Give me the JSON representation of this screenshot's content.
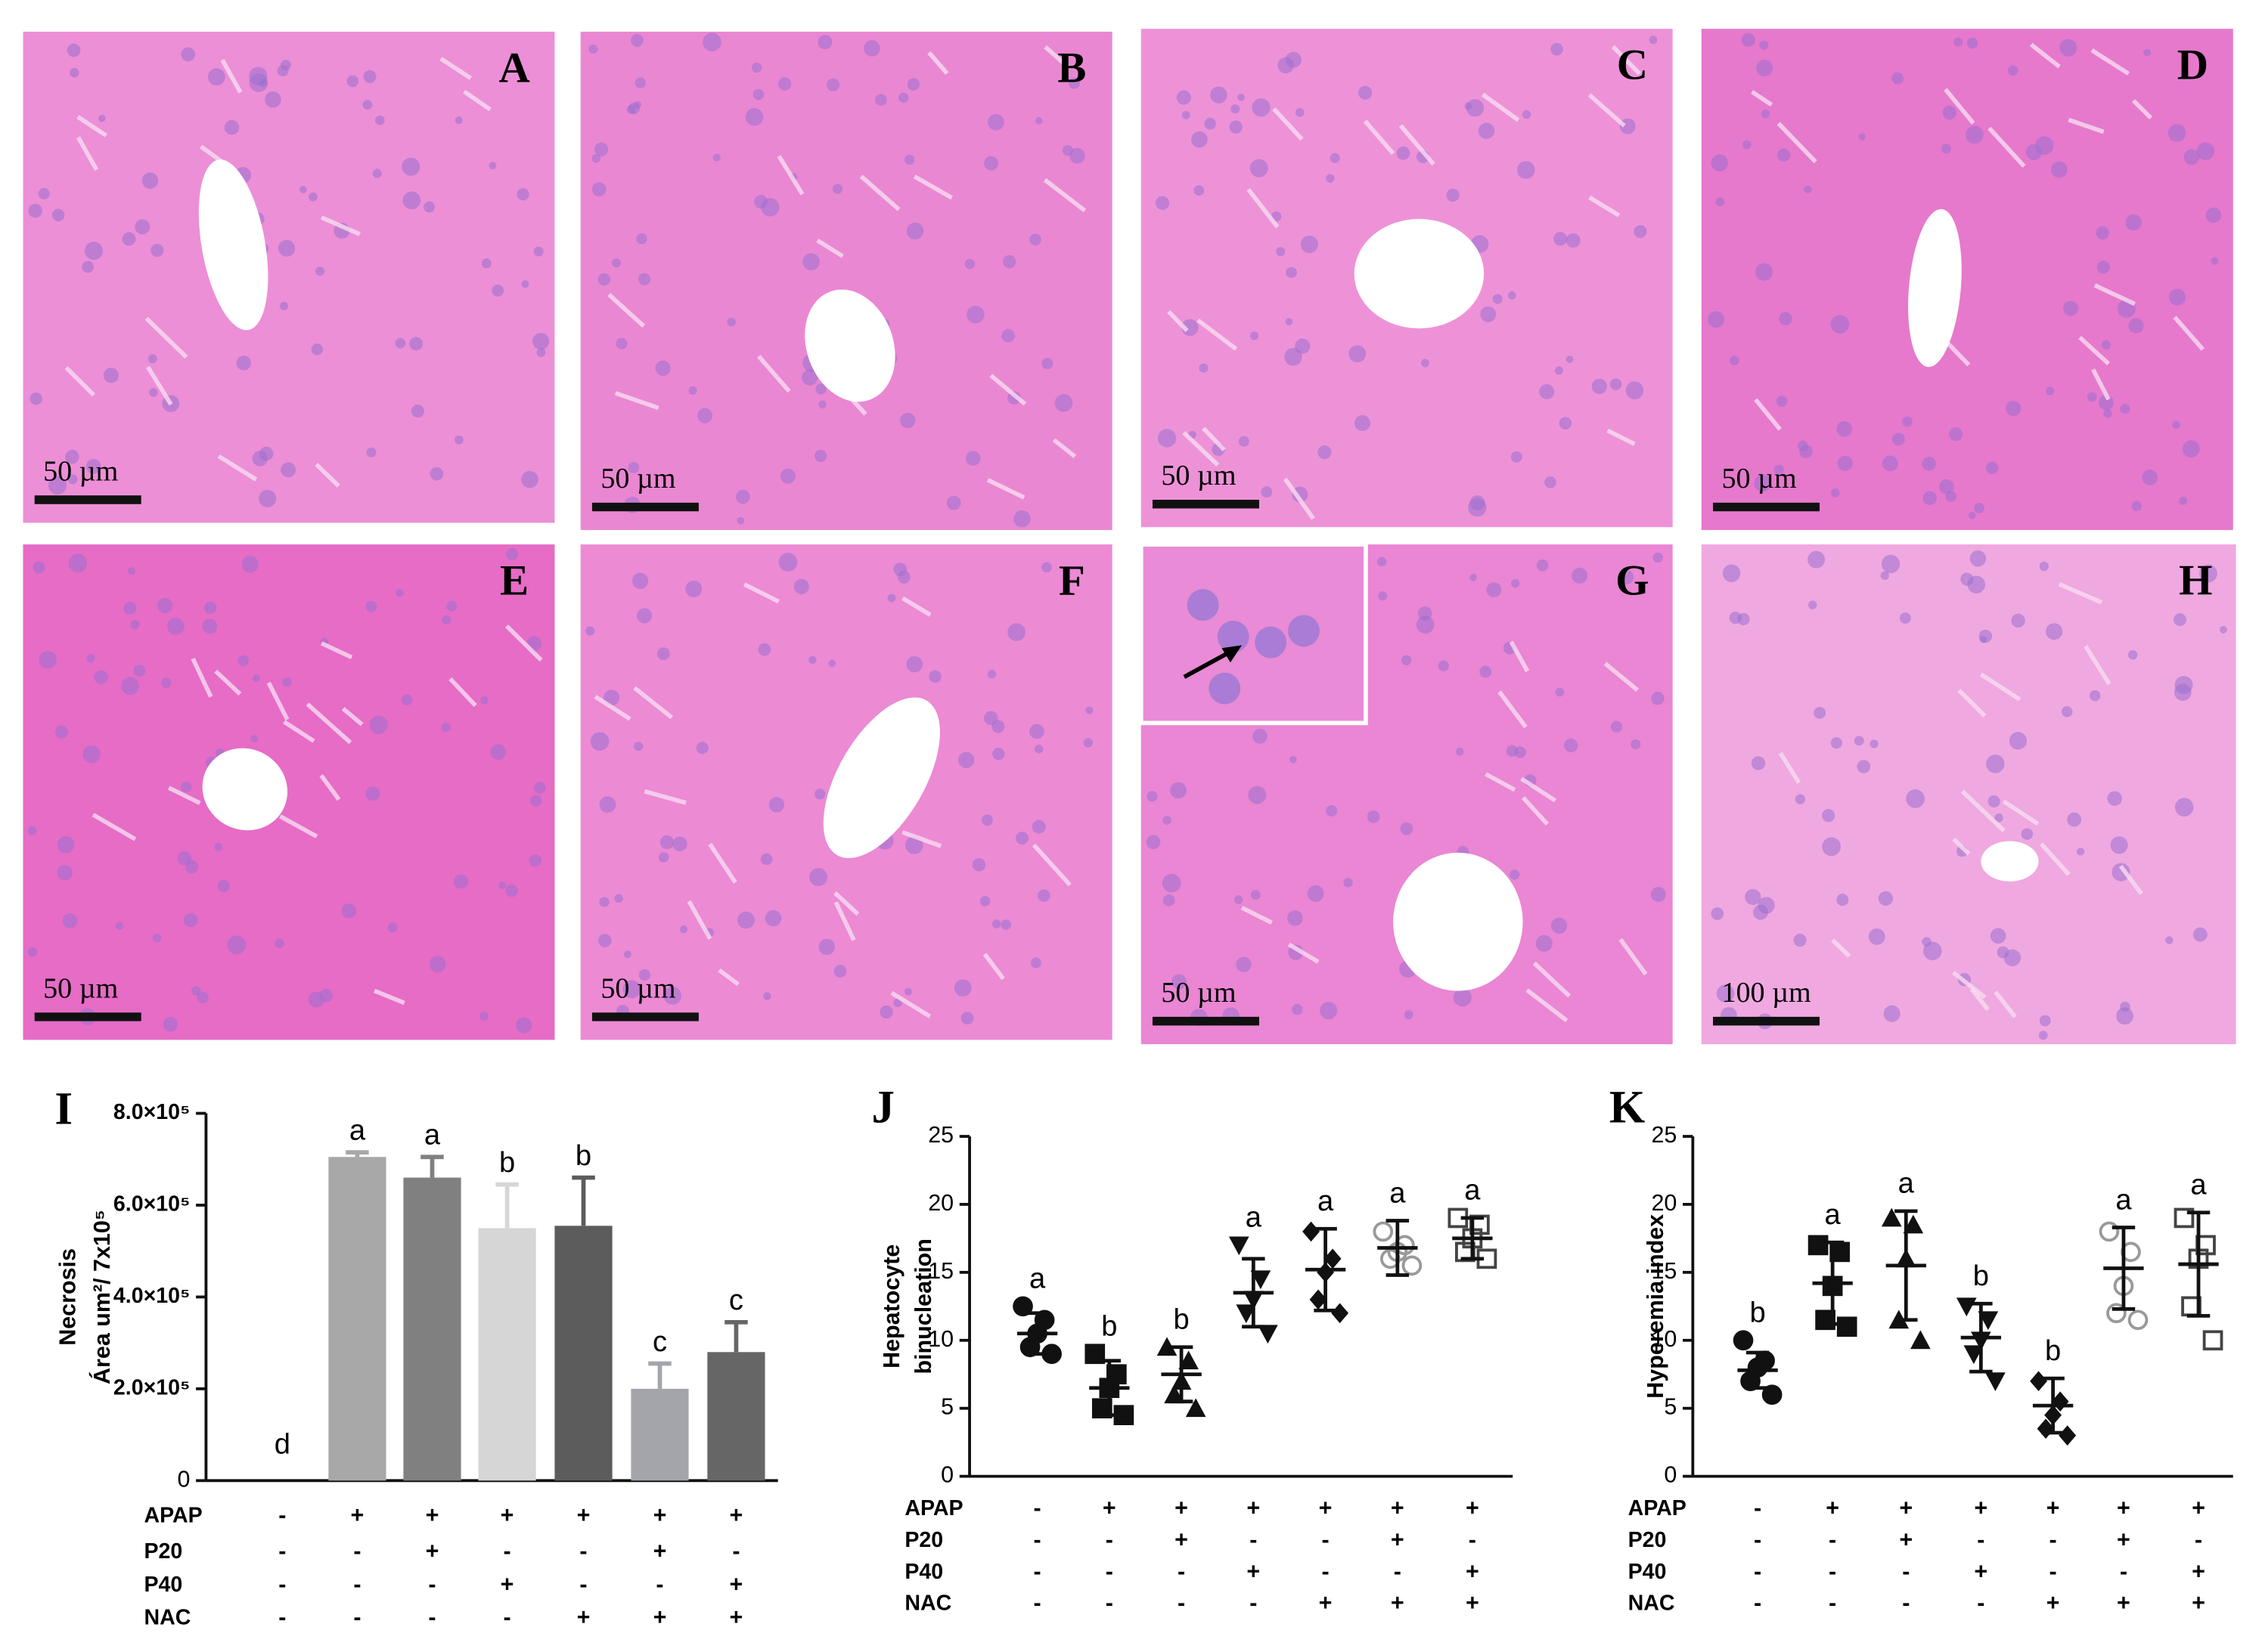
{
  "panels": [
    {
      "label": "A",
      "scale": "50 µm"
    },
    {
      "label": "B",
      "scale": "50 µm"
    },
    {
      "label": "C",
      "scale": "50 µm"
    },
    {
      "label": "D",
      "scale": "50 µm"
    },
    {
      "label": "E",
      "scale": "50 µm"
    },
    {
      "label": "F",
      "scale": "50 µm"
    },
    {
      "label": "G",
      "scale": "50 µm"
    },
    {
      "label": "H",
      "scale": "100 µm"
    }
  ],
  "chart_data": [
    {
      "type": "bar",
      "panel": "I",
      "ylabel": [
        "Necrosis",
        "Área um²/ 7x10⁵"
      ],
      "ylim": [
        0,
        800000
      ],
      "yticks": [
        {
          "value": 800000,
          "label": "8.0×10⁵"
        },
        {
          "value": 600000,
          "label": "6.0×10⁵"
        },
        {
          "value": 400000,
          "label": "4.0×10⁵"
        },
        {
          "value": 200000,
          "label": "2.0×10⁵"
        },
        0
      ],
      "values": [
        0,
        705000,
        660000,
        550000,
        555000,
        200000,
        280000
      ],
      "errors": [
        0,
        10000,
        45000,
        95000,
        105000,
        55000,
        65000
      ],
      "letters": [
        "d",
        "a",
        "a",
        "b",
        "b",
        "c",
        "c"
      ],
      "colors": [
        "#a8a8a8",
        "#a8a8a8",
        "#808080",
        "#d6d6d6",
        "#5c5c5c",
        "#a3a5aa",
        "#666666"
      ],
      "treatments": [
        {
          "name": "APAP",
          "signs": [
            "-",
            "+",
            "+",
            "+",
            "+",
            "+",
            "+"
          ]
        },
        {
          "name": "P20",
          "signs": [
            "-",
            "-",
            "+",
            "-",
            "-",
            "+",
            "-"
          ]
        },
        {
          "name": "P40",
          "signs": [
            "-",
            "-",
            "-",
            "+",
            "-",
            "-",
            "+"
          ]
        },
        {
          "name": "NAC",
          "signs": [
            "-",
            "-",
            "-",
            "-",
            "+",
            "+",
            "+"
          ]
        }
      ]
    },
    {
      "type": "scatter",
      "panel": "J",
      "ylabel": [
        "Hepatocyte",
        "binucleation"
      ],
      "ylim": [
        0,
        25
      ],
      "yticks": [
        25,
        20,
        15,
        10,
        5,
        0
      ],
      "groups": [
        {
          "values": [
            12.5,
            11.5,
            10.5,
            9.5,
            9
          ],
          "mean": 10.5,
          "sd": 1.5,
          "letter": "a",
          "marker": "circle"
        },
        {
          "values": [
            9,
            7.5,
            6.5,
            5,
            4.5
          ],
          "mean": 6.5,
          "sd": 2,
          "letter": "b",
          "marker": "square"
        },
        {
          "values": [
            9.5,
            8.5,
            7,
            6,
            5
          ],
          "mean": 7.5,
          "sd": 2,
          "letter": "b",
          "marker": "triangle-up"
        },
        {
          "values": [
            17,
            14.5,
            13,
            12,
            10.5
          ],
          "mean": 13.5,
          "sd": 2.5,
          "letter": "a",
          "marker": "triangle-down"
        },
        {
          "values": [
            18,
            16,
            15,
            13,
            12
          ],
          "mean": 15.2,
          "sd": 3,
          "letter": "a",
          "marker": "diamond"
        },
        {
          "values": [
            18,
            17,
            16.5,
            16,
            15.5
          ],
          "mean": 16.8,
          "sd": 2,
          "letter": "a",
          "marker": "open-circle"
        },
        {
          "values": [
            19,
            18.5,
            17.5,
            16.5,
            16
          ],
          "mean": 17.5,
          "sd": 1.5,
          "letter": "a",
          "marker": "open-square"
        }
      ],
      "treatments": [
        {
          "name": "APAP",
          "signs": [
            "-",
            "+",
            "+",
            "+",
            "+",
            "+",
            "+"
          ]
        },
        {
          "name": "P20",
          "signs": [
            "-",
            "-",
            "+",
            "-",
            "-",
            "+",
            "-"
          ]
        },
        {
          "name": "P40",
          "signs": [
            "-",
            "-",
            "-",
            "+",
            "-",
            "-",
            "+"
          ]
        },
        {
          "name": "NAC",
          "signs": [
            "-",
            "-",
            "-",
            "-",
            "+",
            "+",
            "+"
          ]
        }
      ]
    },
    {
      "type": "scatter",
      "panel": "K",
      "ylabel": [
        "Hyperemia index"
      ],
      "ylim": [
        0,
        25
      ],
      "yticks": [
        25,
        20,
        15,
        10,
        5,
        0
      ],
      "groups": [
        {
          "values": [
            10,
            8.5,
            8,
            7,
            6
          ],
          "mean": 7.8,
          "sd": 1.3,
          "letter": "b",
          "marker": "circle"
        },
        {
          "values": [
            17,
            16.5,
            14,
            11.5,
            11
          ],
          "mean": 14.2,
          "sd": 3,
          "letter": "a",
          "marker": "square"
        },
        {
          "values": [
            19,
            18.5,
            16,
            11.5,
            10
          ],
          "mean": 15.5,
          "sd": 4,
          "letter": "a",
          "marker": "triangle-up"
        },
        {
          "values": [
            12.5,
            11.5,
            10,
            9,
            7
          ],
          "mean": 10.2,
          "sd": 2.5,
          "letter": "b",
          "marker": "triangle-down"
        },
        {
          "values": [
            7,
            5.5,
            4.5,
            3.5,
            3
          ],
          "mean": 5.2,
          "sd": 2,
          "letter": "b",
          "marker": "diamond"
        },
        {
          "values": [
            18,
            16.5,
            14,
            12,
            11.5
          ],
          "mean": 15.3,
          "sd": 3,
          "letter": "a",
          "marker": "open-circle"
        },
        {
          "values": [
            19,
            17,
            16,
            12.5,
            10
          ],
          "mean": 15.6,
          "sd": 3.8,
          "letter": "a",
          "marker": "open-square"
        }
      ],
      "treatments": [
        {
          "name": "APAP",
          "signs": [
            "-",
            "+",
            "+",
            "+",
            "+",
            "+",
            "+"
          ]
        },
        {
          "name": "P20",
          "signs": [
            "-",
            "-",
            "+",
            "-",
            "-",
            "+",
            "-"
          ]
        },
        {
          "name": "P40",
          "signs": [
            "-",
            "-",
            "-",
            "+",
            "-",
            "-",
            "+"
          ]
        },
        {
          "name": "NAC",
          "signs": [
            "-",
            "-",
            "-",
            "-",
            "+",
            "+",
            "+"
          ]
        }
      ]
    }
  ]
}
